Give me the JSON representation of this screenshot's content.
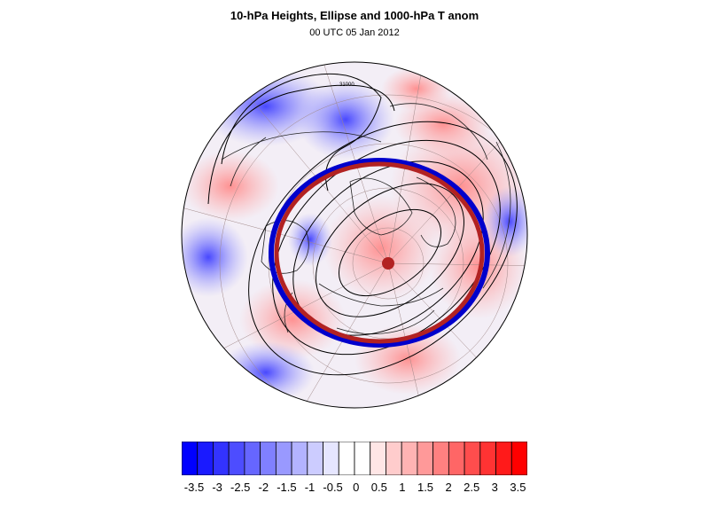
{
  "title": "10-hPa Heights, Ellipse and 1000-hPa T anom",
  "subtitle": "00 UTC 05 Jan 2012",
  "map": {
    "projection": "north polar stereographic",
    "contour_label": "31000",
    "pole_marker_color": "#b22222",
    "ellipse_colors": [
      "#b22222",
      "#0000cc"
    ]
  },
  "colorbar": {
    "labels": [
      "-3.5",
      "-3",
      "-2.5",
      "-2",
      "-1.5",
      "-1",
      "-0.5",
      "0",
      "0.5",
      "1",
      "1.5",
      "2",
      "2.5",
      "3",
      "3.5"
    ],
    "colors": [
      "#0000ff",
      "#1a1aff",
      "#3333ff",
      "#4d4dff",
      "#6666ff",
      "#8080ff",
      "#9999ff",
      "#b3b3ff",
      "#ccccff",
      "#e6e6ff",
      "#ffffff",
      "#ffffff",
      "#ffe6e6",
      "#ffcccc",
      "#ffb3b3",
      "#ff9999",
      "#ff8080",
      "#ff6666",
      "#ff4d4d",
      "#ff3333",
      "#ff1a1a",
      "#ff0000"
    ]
  }
}
